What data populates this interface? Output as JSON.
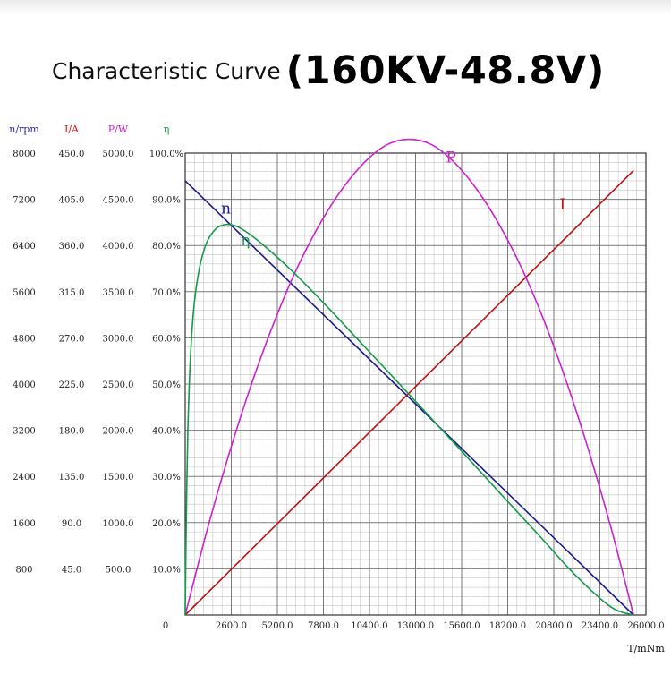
{
  "header": {
    "title": "Characteristic Curve",
    "spec": "(160KV-48.8V)"
  },
  "chart_data": {
    "type": "line",
    "title": "Characteristic Curve (160KV-48.8V)",
    "xlabel": "T/mNm",
    "xlim": [
      0,
      26000
    ],
    "x_ticks": [
      0,
      2600,
      5200,
      7800,
      10400,
      13000,
      15600,
      18200,
      20800,
      23400,
      26000
    ],
    "x_tick_labels": [
      "0",
      "2600.0",
      "5200.0",
      "7800.0",
      "10400.0",
      "13000.0",
      "15600.0",
      "18200.0",
      "20800.0",
      "23400.0",
      "26000.0"
    ],
    "grid": true,
    "axes": [
      {
        "key": "speed",
        "label": "n/rpm",
        "color": "#2a2aa6",
        "range": [
          0,
          8000
        ],
        "tick_labels": [
          "8000",
          "7200",
          "6400",
          "5600",
          "4800",
          "4000",
          "3200",
          "2400",
          "1600",
          "800"
        ]
      },
      {
        "key": "current",
        "label": "I/A",
        "color": "#cc1111",
        "range": [
          0,
          450
        ],
        "tick_labels": [
          "450.0",
          "405.0",
          "360.0",
          "315.0",
          "270.0",
          "225.0",
          "180.0",
          "135.0",
          "90.0",
          "45.0"
        ]
      },
      {
        "key": "power",
        "label": "P/W",
        "color": "#cc22cc",
        "range": [
          0,
          5000
        ],
        "tick_labels": [
          "5000.0",
          "4500.0",
          "4000.0",
          "3500.0",
          "3000.0",
          "2500.0",
          "2000.0",
          "1500.0",
          "1000.0",
          "500.0"
        ]
      },
      {
        "key": "efficiency",
        "label": "η",
        "color": "#119944",
        "range": [
          0,
          100
        ],
        "tick_labels": [
          "100.0%",
          "90.0%",
          "80.0%",
          "70.0%",
          "60.0%",
          "50.0%",
          "40.0%",
          "30.0%",
          "20.0%",
          "10.0%"
        ]
      }
    ],
    "series": [
      {
        "name": "n",
        "axis": "speed",
        "color": "#1a1a8c",
        "x": [
          0,
          25300
        ],
        "y": [
          7520,
          0
        ]
      },
      {
        "name": "I",
        "axis": "current",
        "color": "#bb1111",
        "x": [
          0,
          25300
        ],
        "y": [
          0,
          433
        ]
      },
      {
        "name": "P",
        "axis": "power",
        "color": "#cc22cc",
        "x": [
          0,
          1265,
          2530,
          3795,
          5060,
          6325,
          7590,
          8855,
          10120,
          11385,
          12650,
          13915,
          15180,
          16445,
          17710,
          18975,
          20240,
          21505,
          22770,
          24035,
          25300
        ],
        "y": [
          0,
          940,
          1780,
          2530,
          3190,
          3760,
          4230,
          4610,
          4900,
          5090,
          5150,
          5090,
          4900,
          4610,
          4230,
          3760,
          3190,
          2530,
          1780,
          940,
          0
        ]
      },
      {
        "name": "η",
        "axis": "efficiency",
        "color": "#149a4c",
        "x": [
          0,
          60,
          150,
          300,
          500,
          800,
          1200,
          1700,
          2200,
          2800,
          3500,
          4500,
          6000,
          8000,
          10000,
          12000,
          14000,
          16000,
          18000,
          20000,
          22000,
          24000,
          25300
        ],
        "y": [
          0,
          20,
          40,
          56,
          67,
          75,
          80.5,
          83.5,
          84.5,
          84.3,
          82.8,
          79.8,
          74.6,
          66.8,
          58.6,
          50.4,
          42.1,
          33.8,
          25.4,
          17.1,
          8.7,
          1.8,
          0
        ]
      }
    ],
    "annotations": [
      {
        "text": "n",
        "series": "n",
        "x": 2300,
        "y": 6950
      },
      {
        "text": "η",
        "series": "η",
        "x": 3400,
        "y": 80
      },
      {
        "text": "P",
        "series": "P",
        "x": 15000,
        "y": 4900
      },
      {
        "text": "I",
        "series": "I",
        "x": 21300,
        "y": 395
      }
    ]
  }
}
